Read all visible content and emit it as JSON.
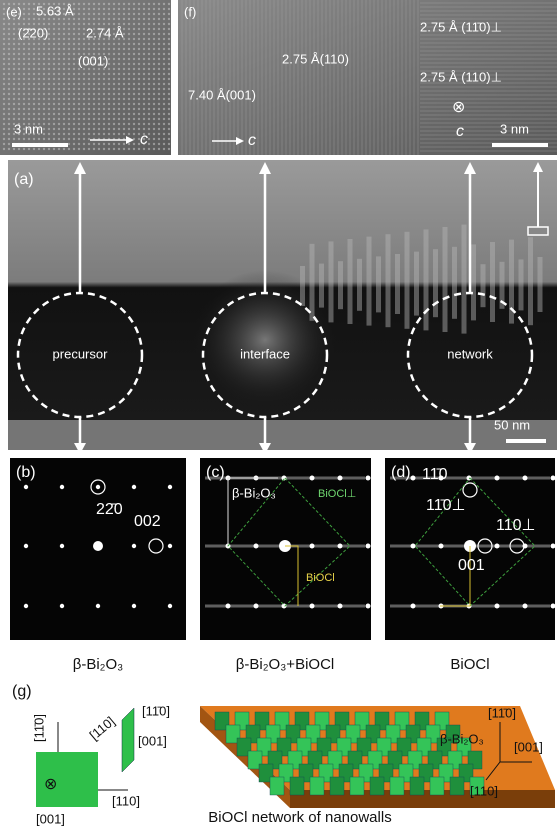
{
  "panel_e": {
    "label": "(e)",
    "spacing_1": "5.63 Å",
    "plane": "(2̄20)",
    "spacing_2": "2.74 Å",
    "zone": "(001)",
    "scale_bar": "3 nm",
    "axis": "c"
  },
  "panel_f": {
    "label": "(f)",
    "fringe_1": "2.75 Å(110)",
    "fringe_2": "7.40 Å(001)",
    "fringe_3": "2.75 Å (11̄0)⊥",
    "fringe_4": "2.75 Å (110)⊥",
    "symbol": "⊗",
    "axis_1": "c",
    "axis_2": "c",
    "scale_bar": "3 nm"
  },
  "panel_a": {
    "label": "(a)",
    "regions": [
      "precursor",
      "interface",
      "network"
    ],
    "scale_bar": "50 nm"
  },
  "panel_b": {
    "label": "(b)",
    "spots": [
      "22̄0",
      "002"
    ],
    "caption": "β-Bi₂O₃"
  },
  "panel_c": {
    "label": "(c)",
    "lattice_1": "β-Bi₂O₃",
    "lattice_2": "BiOCl⊥",
    "lattice_3": "BiOCl",
    "caption": "β-Bi₂O₃+BiOCl"
  },
  "panel_d": {
    "label": "(d)",
    "spots": [
      "11̄0",
      "11̄0⊥",
      "110⊥",
      "001"
    ],
    "caption": "BiOCl"
  },
  "panel_g": {
    "label": "(g)",
    "small_wall": [
      "[11̄0]",
      "[110]",
      "[001]"
    ],
    "substrate_block": [
      "[11̄0]",
      "[110]",
      "[001]",
      "⊗"
    ],
    "film": "β-Bi₂O₃",
    "film_axes": [
      "[11̄0]",
      "[001]",
      "[110]"
    ],
    "caption": "BiOCl network of nanowalls"
  }
}
